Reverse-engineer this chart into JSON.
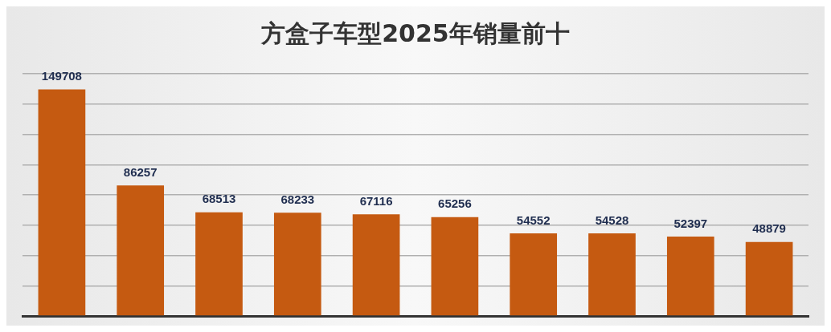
{
  "chart_data": {
    "type": "bar",
    "title": "方盒子车型2025年销量前十",
    "categories": [
      null,
      null,
      null,
      null,
      null,
      null,
      null,
      null,
      null,
      null
    ],
    "values": [
      149708,
      86257,
      68513,
      68233,
      67116,
      65256,
      54552,
      54528,
      52397,
      48879
    ],
    "color": "#c55a11",
    "ylim": [
      0,
      160000
    ],
    "yticks": [
      {
        "value": 0,
        "label": null
      },
      {
        "value": 20000,
        "label": null
      },
      {
        "value": 40000,
        "label": null
      },
      {
        "value": 60000,
        "label": null
      },
      {
        "value": 80000,
        "label": null
      },
      {
        "value": 100000,
        "label": null
      },
      {
        "value": 120000,
        "label": null
      },
      {
        "value": 140000,
        "label": null
      },
      {
        "value": 160000,
        "label": null
      }
    ],
    "grid": "y",
    "tick_labels": false,
    "data_labels": true,
    "legend": false
  }
}
